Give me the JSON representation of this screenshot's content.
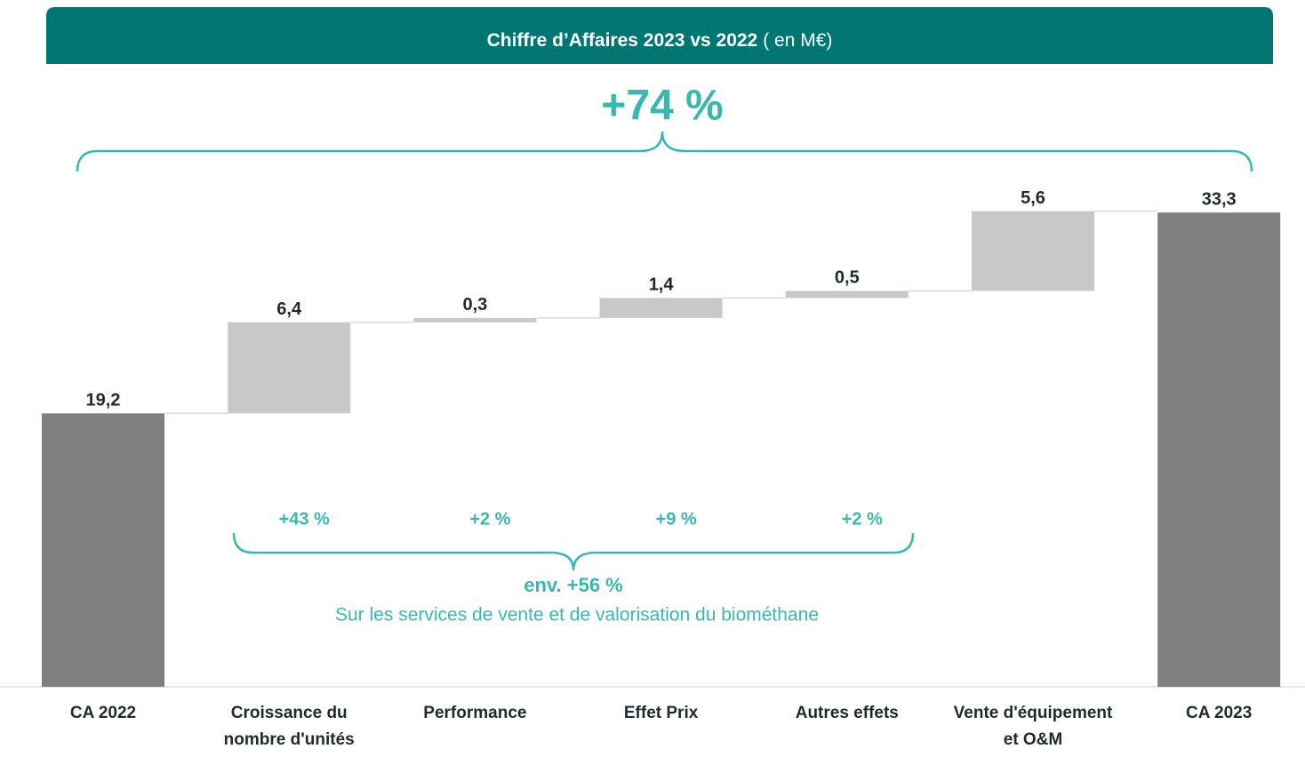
{
  "chart_data": {
    "type": "waterfall",
    "title": "Chiffre d’Affaires 2023 vs 2022",
    "title_unit": "( en M€)",
    "categories": [
      "CA 2022",
      "Croissance du nombre d'unités",
      "Performance",
      "Effet Prix",
      "Autres effets",
      "Vente d'équipement et O&M",
      "CA 2023"
    ],
    "values": [
      19.2,
      6.4,
      0.3,
      1.4,
      0.5,
      5.6,
      33.3
    ],
    "value_labels": [
      "19,2",
      "6,4",
      "0,3",
      "1,4",
      "0,5",
      "5,6",
      "33,3"
    ],
    "totals": [
      true,
      false,
      false,
      false,
      false,
      false,
      true
    ],
    "total_color": "#7f7f7f",
    "delta_color": "#c8c8c8",
    "ylim": [
      0,
      35
    ],
    "annotations": {
      "total_change": "+74 %",
      "segment_changes": [
        "+43 %",
        "+2 %",
        "+9 %",
        "+2 %"
      ],
      "subtotal_change": "env. +56 %",
      "subtotal_note": "Sur les services de vente et de valorisation du biométhane"
    }
  }
}
